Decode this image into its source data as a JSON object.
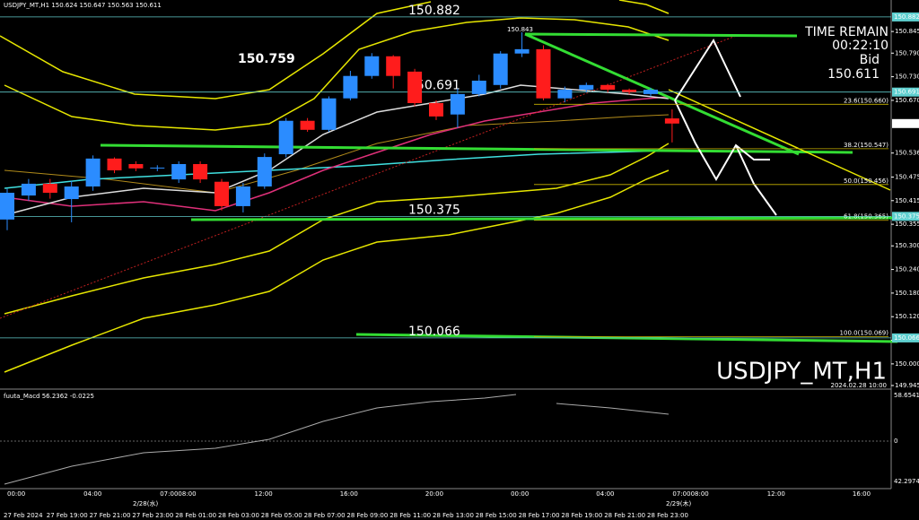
{
  "header": {
    "title": "USDJPY_MT,H1  150.624 150.647 150.563 150.611",
    "time_remain_label": "TIME REMAIN",
    "time_remain": "00:22:10",
    "bid_label": "Bid",
    "bid": "150.611",
    "watermark": "USDJPY_MT,H1",
    "watermark_date": "2024.02.28 10:00",
    "high_mark": "150.843",
    "date_left": "2/28(水)",
    "date_right": "2/29(木)"
  },
  "chart_data": {
    "type": "candlestick",
    "up_color": "#2b8cff",
    "down_color": "#ff1c1c",
    "categories": [
      "27 Feb 2024",
      null,
      "27 Feb 19:00",
      null,
      "27 Feb 21:00",
      null,
      "27 Feb 23:00",
      null,
      "28 Feb 01:00",
      null,
      "28 Feb 03:00",
      null,
      "28 Feb 05:00",
      null,
      "28 Feb 07:00",
      null,
      "28 Feb 09:00",
      null,
      "28 Feb 11:00",
      null,
      "28 Feb 13:00",
      null,
      "28 Feb 15:00",
      null,
      "28 Feb 17:00",
      null,
      "28 Feb 19:00",
      null,
      "28 Feb 21:00",
      null,
      "28 Feb 23:00",
      null
    ],
    "open": [
      150.367,
      150.428,
      150.458,
      150.419,
      150.451,
      150.522,
      150.508,
      150.499,
      150.469,
      150.508,
      150.463,
      150.401,
      150.451,
      150.533,
      150.618,
      150.595,
      150.675,
      150.732,
      150.782,
      150.743,
      150.663,
      150.634,
      150.686,
      150.709,
      150.789,
      150.8,
      150.675,
      150.697,
      150.709,
      150.697,
      150.686,
      150.624
    ],
    "high": [
      150.445,
      150.47,
      150.47,
      150.465,
      150.53,
      150.525,
      150.515,
      150.505,
      150.515,
      150.515,
      150.47,
      150.46,
      150.535,
      150.625,
      150.625,
      150.68,
      150.745,
      150.79,
      150.785,
      150.75,
      150.67,
      150.7,
      150.735,
      150.795,
      150.843,
      150.81,
      150.705,
      150.715,
      150.712,
      150.7,
      150.702,
      150.647
    ],
    "low": [
      150.34,
      150.415,
      150.42,
      150.36,
      150.44,
      150.485,
      150.49,
      150.49,
      150.46,
      150.46,
      150.39,
      150.385,
      150.445,
      150.525,
      150.59,
      150.59,
      150.67,
      150.725,
      150.7,
      150.655,
      150.62,
      150.6,
      150.68,
      150.7,
      150.78,
      150.67,
      150.665,
      150.69,
      150.69,
      150.685,
      150.68,
      150.563
    ],
    "close": [
      150.435,
      150.458,
      150.435,
      150.451,
      150.522,
      150.492,
      150.497,
      150.499,
      150.508,
      150.469,
      150.401,
      150.451,
      150.526,
      150.618,
      150.595,
      150.675,
      150.732,
      150.782,
      150.732,
      150.663,
      150.629,
      150.686,
      150.72,
      150.789,
      150.8,
      150.675,
      150.697,
      150.709,
      150.697,
      150.691,
      150.697,
      150.611
    ],
    "ylim": [
      149.945,
      150.9
    ],
    "yticks": [
      {
        "value": 150.845,
        "label": "150.845"
      },
      {
        "value": 150.79,
        "label": "150.790"
      },
      {
        "value": 150.73,
        "label": "150.730"
      },
      {
        "value": 150.67,
        "label": "150.670"
      },
      {
        "value": 150.536,
        "label": "150.536"
      },
      {
        "value": 150.475,
        "label": "150.475"
      },
      {
        "value": 150.415,
        "label": "150.415"
      },
      {
        "value": 150.355,
        "label": "150.355"
      },
      {
        "value": 150.3,
        "label": "150.300"
      },
      {
        "value": 150.24,
        "label": "150.240"
      },
      {
        "value": 150.18,
        "label": "150.180"
      },
      {
        "value": 150.12,
        "label": "150.120"
      },
      {
        "value": 150.06,
        "label": "150.060"
      },
      {
        "value": 150,
        "label": "150.000"
      },
      {
        "value": 149.945,
        "label": "149.945"
      }
    ],
    "levels": [
      {
        "value": 150.882,
        "label": "150.882"
      },
      {
        "value": 150.759,
        "label": "150.759"
      },
      {
        "value": 150.691,
        "label": "150.691"
      },
      {
        "value": 150.375,
        "label": "150.375"
      },
      {
        "value": 150.066,
        "label": "150.066"
      }
    ],
    "marked_prices": [
      {
        "value": 150.882,
        "label": "150.882"
      },
      {
        "value": 150.691,
        "label": "150.691"
      },
      {
        "value": 150.611,
        "label": "150.611"
      },
      {
        "value": 150.375,
        "label": "150.375"
      },
      {
        "value": 150.066,
        "label": "150.066"
      }
    ],
    "fib_levels": [
      {
        "value": 150.66,
        "label": "23.6(150.660)"
      },
      {
        "value": 150.547,
        "label": "38.2(150.547)"
      },
      {
        "value": 150.456,
        "label": "50.0(150.456)"
      },
      {
        "value": 150.365,
        "label": "61.8(150.365)"
      },
      {
        "value": 150.069,
        "label": "100.0(150.069)"
      }
    ],
    "time_axis": [
      "00:00",
      "04:00",
      "07:0008:00",
      "12:00",
      "16:00",
      "20:00",
      "00:00",
      "04:00",
      "07:0008:00",
      "12:00",
      "16:00"
    ]
  },
  "macd": {
    "title": "fuuta_Macd 56.2362 -0.0225",
    "labels": [
      "58.6541",
      "0",
      "42.2974"
    ]
  }
}
